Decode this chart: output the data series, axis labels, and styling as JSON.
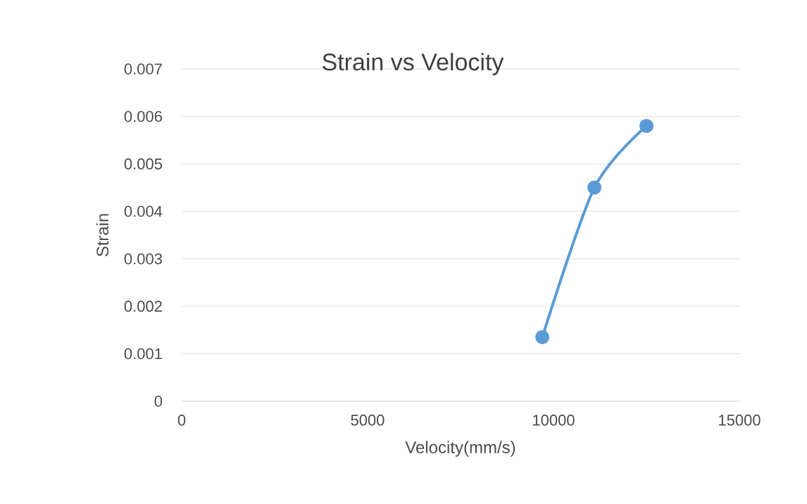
{
  "chart_data": {
    "type": "line",
    "title": "Strain vs Velocity",
    "xlabel": "Velocity(mm/s)",
    "ylabel": "Strain",
    "x": [
      9700,
      11100,
      12500
    ],
    "series": [
      {
        "color": "#5b9bd5",
        "values": [
          0.00135,
          0.0045,
          0.0058
        ]
      }
    ],
    "xlim": [
      0,
      15000
    ],
    "xticks": [
      0,
      5000,
      10000,
      15000
    ],
    "ylim": [
      0,
      0.007
    ],
    "yticks": [
      0,
      0.001,
      0.002,
      0.003,
      0.004,
      0.005,
      0.006,
      0.007
    ],
    "grid": "y",
    "marker": "circle",
    "line_style": "solid"
  }
}
